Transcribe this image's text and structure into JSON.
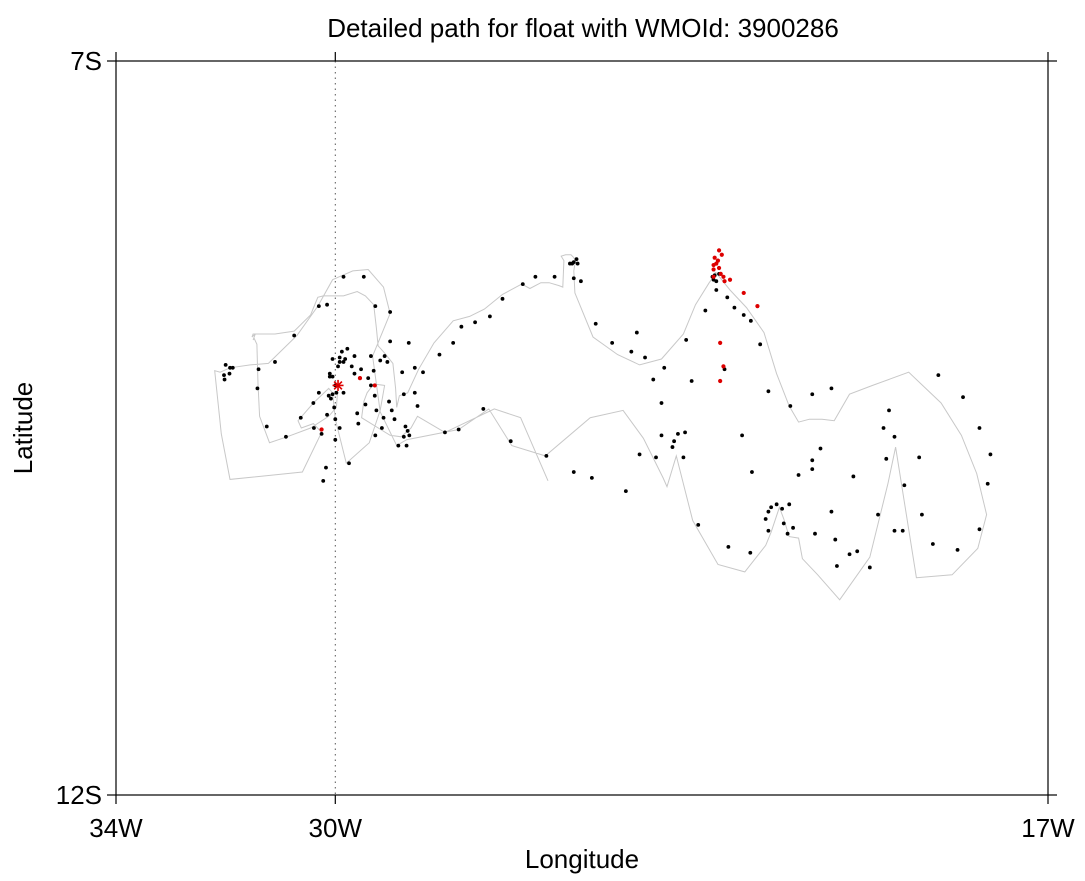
{
  "chart_data": {
    "type": "scatter",
    "title": "Detailed path for float with WMOId: 3900286",
    "xlabel": "Longitude",
    "ylabel": "Latitude",
    "xlim": [
      -34,
      -17
    ],
    "ylim": [
      -12,
      -7
    ],
    "x_ticks": [
      {
        "value": -34,
        "label": "34W"
      },
      {
        "value": -30,
        "label": "30W"
      },
      {
        "value": -17,
        "label": "17W"
      }
    ],
    "y_ticks": [
      {
        "value": -7,
        "label": "7S"
      },
      {
        "value": -12,
        "label": "12S"
      }
    ],
    "reference_line": {
      "x": -30,
      "style": "dotted"
    },
    "colors": {
      "path": "#c8c8c8",
      "point": "#000000",
      "highlight": "#dd0000",
      "start_marker": "#dd0000",
      "reference": "#555555"
    },
    "start_marker": {
      "x": -29.95,
      "y": -9.21
    },
    "path": [
      [
        -29.95,
        -9.21
      ],
      [
        -29.98,
        -9.36
      ],
      [
        -30.12,
        -9.42
      ],
      [
        -30.45,
        -9.5
      ],
      [
        -30.88,
        -9.56
      ],
      [
        -31.2,
        -9.6
      ],
      [
        -31.38,
        -9.42
      ],
      [
        -31.41,
        -9.2
      ],
      [
        -31.43,
        -8.93
      ],
      [
        -31.48,
        -8.89
      ],
      [
        -31.5,
        -8.9
      ],
      [
        -31.46,
        -8.86
      ],
      [
        -31.52,
        -8.88
      ],
      [
        -31.5,
        -8.86
      ],
      [
        -31.1,
        -8.86
      ],
      [
        -30.75,
        -8.84
      ],
      [
        -30.45,
        -8.73
      ],
      [
        -30.32,
        -8.61
      ],
      [
        -30.22,
        -8.6
      ],
      [
        -29.85,
        -8.6
      ],
      [
        -29.6,
        -8.57
      ],
      [
        -29.45,
        -8.6
      ],
      [
        -29.3,
        -8.66
      ],
      [
        -29.25,
        -8.82
      ],
      [
        -29.22,
        -8.94
      ],
      [
        -29.1,
        -8.99
      ],
      [
        -28.95,
        -9.06
      ],
      [
        -28.9,
        -9.23
      ],
      [
        -28.88,
        -9.36
      ],
      [
        -28.83,
        -9.28
      ],
      [
        -28.68,
        -9.26
      ],
      [
        -28.48,
        -9.1
      ],
      [
        -28.2,
        -8.92
      ],
      [
        -27.85,
        -8.77
      ],
      [
        -27.55,
        -8.74
      ],
      [
        -27.28,
        -8.69
      ],
      [
        -26.95,
        -8.59
      ],
      [
        -26.6,
        -8.52
      ],
      [
        -26.45,
        -8.55
      ],
      [
        -26.25,
        -8.51
      ],
      [
        -26.1,
        -8.51
      ],
      [
        -25.92,
        -8.53
      ],
      [
        -25.85,
        -8.54
      ],
      [
        -25.83,
        -8.36
      ],
      [
        -25.88,
        -8.33
      ],
      [
        -25.8,
        -8.32
      ],
      [
        -25.7,
        -8.32
      ],
      [
        -25.65,
        -8.34
      ],
      [
        -25.62,
        -8.36
      ],
      [
        -25.65,
        -8.43
      ],
      [
        -25.63,
        -8.58
      ],
      [
        -25.3,
        -8.88
      ],
      [
        -24.85,
        -9.0
      ],
      [
        -24.45,
        -9.07
      ],
      [
        -24.05,
        -9.03
      ],
      [
        -23.65,
        -8.86
      ],
      [
        -23.43,
        -8.66
      ],
      [
        -23.18,
        -8.51
      ],
      [
        -23.1,
        -8.47
      ],
      [
        -23.08,
        -8.46
      ],
      [
        -23.07,
        -8.44
      ],
      [
        -23.06,
        -8.44
      ],
      [
        -22.8,
        -8.56
      ],
      [
        -22.5,
        -8.68
      ],
      [
        -22.18,
        -8.85
      ],
      [
        -21.95,
        -9.13
      ],
      [
        -21.72,
        -9.35
      ],
      [
        -21.55,
        -9.46
      ],
      [
        -21.35,
        -9.44
      ],
      [
        -21.12,
        -9.44
      ],
      [
        -20.9,
        -9.45
      ],
      [
        -20.62,
        -9.27
      ],
      [
        -20.2,
        -9.21
      ],
      [
        -19.54,
        -9.12
      ],
      [
        -18.95,
        -9.33
      ],
      [
        -18.58,
        -9.55
      ],
      [
        -18.3,
        -9.81
      ],
      [
        -18.12,
        -10.09
      ],
      [
        -18.28,
        -10.32
      ],
      [
        -18.75,
        -10.5
      ],
      [
        -19.4,
        -10.52
      ],
      [
        -19.78,
        -9.63
      ],
      [
        -19.92,
        -9.88
      ],
      [
        -20.25,
        -10.38
      ],
      [
        -20.8,
        -10.67
      ],
      [
        -21.2,
        -10.5
      ],
      [
        -21.48,
        -10.39
      ],
      [
        -21.55,
        -10.25
      ],
      [
        -21.72,
        -10.24
      ],
      [
        -21.82,
        -10.12
      ],
      [
        -21.9,
        -10.04
      ],
      [
        -22.05,
        -10.21
      ],
      [
        -22.15,
        -10.3
      ],
      [
        -22.53,
        -10.48
      ],
      [
        -23.02,
        -10.43
      ],
      [
        -23.48,
        -10.13
      ],
      [
        -23.78,
        -9.69
      ],
      [
        -23.95,
        -9.9
      ],
      [
        -24.02,
        -9.84
      ],
      [
        -24.38,
        -9.57
      ],
      [
        -24.75,
        -9.38
      ],
      [
        -25.35,
        -9.43
      ],
      [
        -26.17,
        -9.69
      ],
      [
        -26.78,
        -9.62
      ],
      [
        -27.2,
        -9.37
      ],
      [
        -27.75,
        -9.51
      ],
      [
        -28.7,
        -9.58
      ],
      [
        -28.88,
        -9.62
      ],
      [
        -29.18,
        -9.39
      ],
      [
        -29.32,
        -9.01
      ],
      [
        -29.0,
        -8.72
      ],
      [
        -29.12,
        -8.54
      ],
      [
        -29.4,
        -8.42
      ],
      [
        -29.68,
        -8.43
      ],
      [
        -30.05,
        -8.49
      ],
      [
        -30.32,
        -8.67
      ],
      [
        -30.7,
        -8.87
      ],
      [
        -31.22,
        -9.06
      ],
      [
        -31.55,
        -9.07
      ],
      [
        -31.92,
        -9.09
      ],
      [
        -32.1,
        -9.12
      ],
      [
        -32.2,
        -9.11
      ],
      [
        -32.08,
        -9.54
      ],
      [
        -31.92,
        -9.85
      ],
      [
        -30.6,
        -9.8
      ],
      [
        -30.25,
        -9.53
      ],
      [
        -30.4,
        -9.47
      ],
      [
        -30.62,
        -9.5
      ],
      [
        -30.68,
        -9.45
      ],
      [
        -30.4,
        -9.33
      ],
      [
        -30.12,
        -9.23
      ],
      [
        -30.05,
        -9.26
      ],
      [
        -30.0,
        -9.44
      ],
      [
        -29.8,
        -9.74
      ],
      [
        -29.38,
        -9.6
      ],
      [
        -29.18,
        -9.38
      ],
      [
        -29.1,
        -9.21
      ],
      [
        -29.3,
        -9.2
      ],
      [
        -29.42,
        -9.26
      ],
      [
        -29.48,
        -9.32
      ],
      [
        -29.52,
        -9.43
      ],
      [
        -29.0,
        -9.55
      ],
      [
        -28.8,
        -9.56
      ],
      [
        -28.62,
        -9.5
      ],
      [
        -28.5,
        -9.42
      ],
      [
        -28.0,
        -9.53
      ],
      [
        -27.1,
        -9.37
      ],
      [
        -26.62,
        -9.43
      ],
      [
        -26.12,
        -9.86
      ]
    ],
    "points": [
      [
        -32.03,
        -9.14
      ],
      [
        -32.0,
        -9.07
      ],
      [
        -32.02,
        -9.17
      ],
      [
        -31.93,
        -9.13
      ],
      [
        -31.92,
        -9.09
      ],
      [
        -31.87,
        -9.09
      ],
      [
        -31.4,
        -9.1
      ],
      [
        -31.1,
        -9.05
      ],
      [
        -30.75,
        -8.87
      ],
      [
        -30.3,
        -8.67
      ],
      [
        -30.15,
        -8.66
      ],
      [
        -29.85,
        -8.47
      ],
      [
        -29.48,
        -8.47
      ],
      [
        -29.27,
        -8.67
      ],
      [
        -29.0,
        -8.71
      ],
      [
        -29.0,
        -8.91
      ],
      [
        -29.35,
        -9.01
      ],
      [
        -29.65,
        -9.01
      ],
      [
        -29.78,
        -8.96
      ],
      [
        -29.82,
        -9.03
      ],
      [
        -29.88,
        -8.98
      ],
      [
        -29.92,
        -9.02
      ],
      [
        -29.85,
        -9.05
      ],
      [
        -29.92,
        -9.05
      ],
      [
        -29.95,
        -9.08
      ],
      [
        -30.05,
        -9.03
      ],
      [
        -30.1,
        -9.15
      ],
      [
        -30.0,
        -9.21
      ],
      [
        -29.98,
        -9.26
      ],
      [
        -30.05,
        -9.27
      ],
      [
        -30.12,
        -9.28
      ],
      [
        -30.08,
        -9.3
      ],
      [
        -30.02,
        -9.36
      ],
      [
        -30.0,
        -9.44
      ],
      [
        -29.92,
        -9.5
      ],
      [
        -29.75,
        -9.74
      ],
      [
        -29.6,
        -9.4
      ],
      [
        -29.35,
        -9.21
      ],
      [
        -29.28,
        -9.28
      ],
      [
        -29.02,
        -9.32
      ],
      [
        -28.97,
        -9.38
      ],
      [
        -28.92,
        -9.44
      ],
      [
        -28.75,
        -9.56
      ],
      [
        -28.5,
        -9.35
      ],
      [
        -28.78,
        -9.12
      ],
      [
        -28.66,
        -8.92
      ],
      [
        -28.55,
        -9.09
      ],
      [
        -28.75,
        -9.27
      ],
      [
        -29.12,
        -9.43
      ],
      [
        -29.15,
        -9.5
      ],
      [
        -28.85,
        -9.62
      ],
      [
        -28.72,
        -9.49
      ],
      [
        -28.68,
        -9.52
      ],
      [
        -28.65,
        -9.55
      ],
      [
        -28.7,
        -9.62
      ],
      [
        -28.55,
        -9.26
      ],
      [
        -29.27,
        -9.55
      ],
      [
        -29.25,
        -9.38
      ],
      [
        -29.55,
        -9.16
      ],
      [
        -29.3,
        -9.11
      ],
      [
        -29.18,
        -9.04
      ],
      [
        -30.0,
        -9.58
      ],
      [
        -30.25,
        -9.54
      ],
      [
        -30.39,
        -9.5
      ],
      [
        -30.63,
        -9.43
      ],
      [
        -30.22,
        -9.86
      ],
      [
        -30.17,
        -9.77
      ],
      [
        -30.4,
        -9.33
      ],
      [
        -30.1,
        -9.13
      ],
      [
        -30.3,
        -9.26
      ],
      [
        -29.7,
        -9.08
      ],
      [
        -29.65,
        -9.13
      ],
      [
        -29.53,
        -9.1
      ],
      [
        -29.1,
        -9.01
      ],
      [
        -29.05,
        -9.05
      ],
      [
        -29.4,
        -9.16
      ],
      [
        -30.9,
        -9.56
      ],
      [
        -31.25,
        -9.49
      ],
      [
        -31.42,
        -9.23
      ],
      [
        -29.58,
        -9.47
      ],
      [
        -29.45,
        -9.34
      ],
      [
        -30.05,
        -9.15
      ],
      [
        -29.85,
        -9.26
      ],
      [
        -30.15,
        -9.41
      ],
      [
        -28.0,
        -9.53
      ],
      [
        -27.75,
        -9.51
      ],
      [
        -27.3,
        -9.37
      ],
      [
        -26.8,
        -9.59
      ],
      [
        -26.15,
        -9.69
      ],
      [
        -25.65,
        -9.8
      ],
      [
        -25.32,
        -9.84
      ],
      [
        -24.7,
        -9.93
      ],
      [
        -24.45,
        -9.68
      ],
      [
        -24.05,
        -9.55
      ],
      [
        -24.15,
        -9.7
      ],
      [
        -23.85,
        -9.63
      ],
      [
        -23.82,
        -9.59
      ],
      [
        -23.75,
        -9.54
      ],
      [
        -23.62,
        -9.53
      ],
      [
        -23.65,
        -9.7
      ],
      [
        -23.38,
        -10.16
      ],
      [
        -22.83,
        -10.31
      ],
      [
        -22.43,
        -10.35
      ],
      [
        -22.1,
        -10.2
      ],
      [
        -21.85,
        -10.05
      ],
      [
        -21.72,
        -10.02
      ],
      [
        -21.55,
        -9.82
      ],
      [
        -21.3,
        -9.72
      ],
      [
        -21.15,
        -9.64
      ],
      [
        -20.55,
        -9.83
      ],
      [
        -19.9,
        -9.38
      ],
      [
        -19.95,
        -9.71
      ],
      [
        -20.0,
        -9.5
      ],
      [
        -19.8,
        -9.56
      ],
      [
        -19.62,
        -9.89
      ],
      [
        -19.8,
        -10.2
      ],
      [
        -20.1,
        -10.09
      ],
      [
        -20.48,
        -10.34
      ],
      [
        -20.85,
        -10.44
      ],
      [
        -21.25,
        -10.22
      ],
      [
        -21.65,
        -10.18
      ],
      [
        -21.75,
        -10.22
      ],
      [
        -21.82,
        -10.15
      ],
      [
        -21.95,
        -10.02
      ],
      [
        -22.05,
        -10.04
      ],
      [
        -22.1,
        -10.07
      ],
      [
        -22.15,
        -10.12
      ],
      [
        -22.4,
        -9.8
      ],
      [
        -22.58,
        -9.55
      ],
      [
        -23.5,
        -9.18
      ],
      [
        -22.9,
        -9.1
      ],
      [
        -24.05,
        -9.33
      ],
      [
        -24.2,
        -9.17
      ],
      [
        -24.35,
        -9.02
      ],
      [
        -24.6,
        -8.98
      ],
      [
        -24.95,
        -8.92
      ],
      [
        -25.25,
        -8.79
      ],
      [
        -25.52,
        -8.5
      ],
      [
        -25.65,
        -8.48
      ],
      [
        -26.0,
        -8.47
      ],
      [
        -26.35,
        -8.47
      ],
      [
        -26.58,
        -8.52
      ],
      [
        -26.95,
        -8.62
      ],
      [
        -27.18,
        -8.74
      ],
      [
        -27.45,
        -8.78
      ],
      [
        -27.7,
        -8.81
      ],
      [
        -27.85,
        -8.92
      ],
      [
        -28.1,
        -9.0
      ],
      [
        -28.4,
        -9.12
      ],
      [
        -23.05,
        -8.56
      ],
      [
        -23.0,
        -8.45
      ],
      [
        -23.08,
        -8.46
      ],
      [
        -23.1,
        -8.49
      ],
      [
        -23.12,
        -8.47
      ],
      [
        -25.65,
        -8.37
      ],
      [
        -25.68,
        -8.38
      ],
      [
        -25.72,
        -8.38
      ],
      [
        -25.6,
        -8.35
      ],
      [
        -25.58,
        -8.38
      ],
      [
        -19.0,
        -9.14
      ],
      [
        -18.55,
        -9.29
      ],
      [
        -18.25,
        -9.5
      ],
      [
        -18.05,
        -9.68
      ],
      [
        -18.1,
        -9.88
      ],
      [
        -18.25,
        -10.19
      ],
      [
        -18.65,
        -10.33
      ],
      [
        -19.1,
        -10.29
      ],
      [
        -19.3,
        -10.09
      ],
      [
        -19.35,
        -9.7
      ],
      [
        -19.65,
        -10.2
      ],
      [
        -20.25,
        -10.45
      ],
      [
        -20.62,
        -10.36
      ],
      [
        -20.88,
        -10.26
      ],
      [
        -20.95,
        -10.07
      ],
      [
        -21.3,
        -9.78
      ],
      [
        -22.1,
        -9.25
      ],
      [
        -22.25,
        -8.93
      ],
      [
        -22.42,
        -8.77
      ],
      [
        -22.55,
        -8.73
      ],
      [
        -22.72,
        -8.68
      ],
      [
        -22.85,
        -8.61
      ],
      [
        -23.05,
        -8.5
      ],
      [
        -23.25,
        -8.7
      ],
      [
        -23.6,
        -8.9
      ],
      [
        -24.0,
        -9.09
      ],
      [
        -24.5,
        -8.85
      ],
      [
        -21.7,
        -9.35
      ],
      [
        -21.3,
        -9.27
      ],
      [
        -20.95,
        -9.23
      ]
    ],
    "highlight_points": [
      [
        -29.55,
        -9.16
      ],
      [
        -29.28,
        -9.21
      ],
      [
        -30.25,
        -9.51
      ],
      [
        -22.8,
        -8.49
      ],
      [
        -22.97,
        -8.45
      ],
      [
        -23.02,
        -8.36
      ],
      [
        -23.05,
        -8.38
      ],
      [
        -23.0,
        -8.41
      ],
      [
        -23.1,
        -8.42
      ],
      [
        -22.9,
        -8.5
      ],
      [
        -23.1,
        -8.47
      ],
      [
        -23.0,
        -8.29
      ],
      [
        -22.95,
        -8.32
      ],
      [
        -23.1,
        -8.39
      ],
      [
        -23.08,
        -8.34
      ],
      [
        -22.92,
        -8.47
      ],
      [
        -22.55,
        -8.58
      ],
      [
        -22.3,
        -8.67
      ],
      [
        -22.98,
        -8.92
      ],
      [
        -22.92,
        -9.08
      ],
      [
        -22.98,
        -9.18
      ]
    ]
  }
}
